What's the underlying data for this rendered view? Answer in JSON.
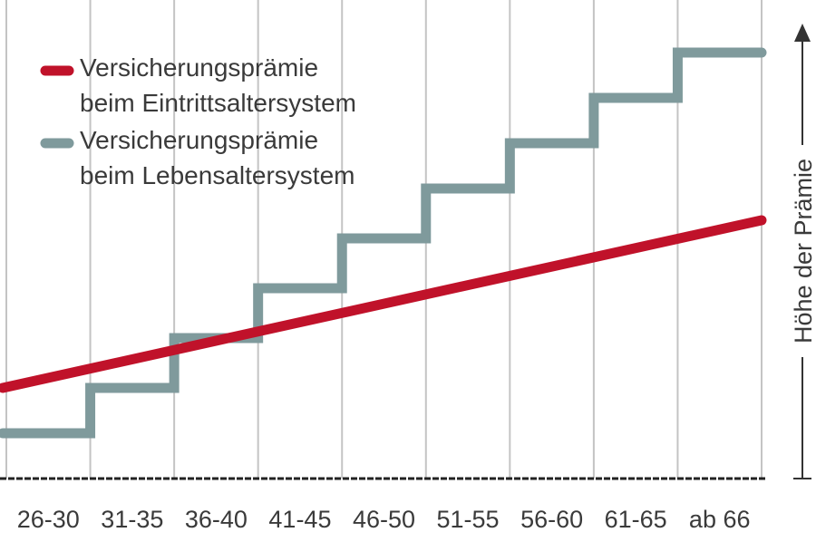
{
  "chart_data": {
    "type": "line",
    "categories": [
      "26-30",
      "31-35",
      "36-40",
      "41-45",
      "46-50",
      "51-55",
      "56-60",
      "61-65",
      "ab 66"
    ],
    "ylabel": "Höhe der Prämie",
    "xlabel": "",
    "ylim": [
      0,
      10
    ],
    "grid": "vertical",
    "legend_position": "top-left",
    "series": [
      {
        "name": "Versicherungsprämie beim Eintrittsaltersystem",
        "name_lines": [
          "Versicherungsprämie",
          "beim Eintrittsaltersystem"
        ],
        "color": "#c0122a",
        "shape": "linear",
        "x": [
          0,
          9
        ],
        "values": [
          2.0,
          5.7
        ]
      },
      {
        "name": "Versicherungsprämie beim Lebensaltersystem",
        "name_lines": [
          "Versicherungsprämie",
          "beim Lebensaltersystem"
        ],
        "color": "#7f9a9c",
        "shape": "step",
        "values": [
          1.0,
          2.0,
          3.1,
          4.2,
          5.3,
          6.4,
          7.4,
          8.4,
          9.4
        ]
      }
    ]
  }
}
